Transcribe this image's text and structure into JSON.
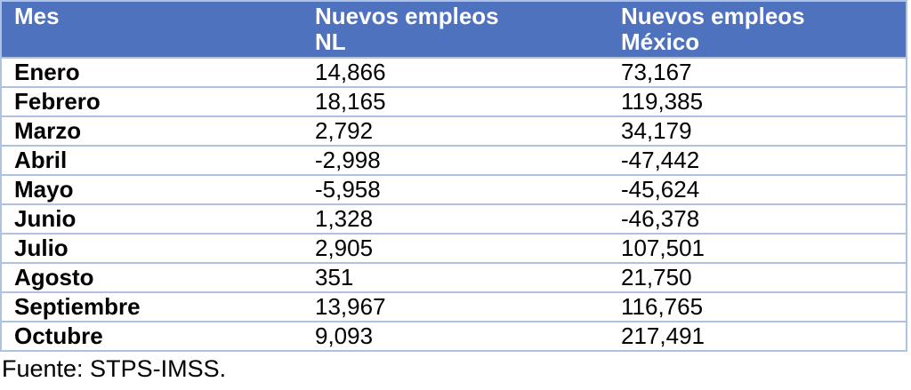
{
  "colors": {
    "header_bg": "#4E72BE",
    "header_text": "#FFFFFF",
    "border": "#AEC2E4",
    "body_text": "#000000"
  },
  "table": {
    "headers": [
      {
        "line1": "Mes",
        "line2": ""
      },
      {
        "line1": "Nuevos empleos",
        "line2": "NL"
      },
      {
        "line1": "Nuevos empleos",
        "line2": "México"
      }
    ],
    "rows": [
      {
        "mes": "Enero",
        "nl": "14,866",
        "mexico": "73,167"
      },
      {
        "mes": "Febrero",
        "nl": "18,165",
        "mexico": "119,385"
      },
      {
        "mes": "Marzo",
        "nl": "2,792",
        "mexico": "34,179"
      },
      {
        "mes": "Abril",
        "nl": "-2,998",
        "mexico": "-47,442"
      },
      {
        "mes": "Mayo",
        "nl": "-5,958",
        "mexico": "-45,624"
      },
      {
        "mes": "Junio",
        "nl": "1,328",
        "mexico": "-46,378"
      },
      {
        "mes": "Julio",
        "nl": "2,905",
        "mexico": "107,501"
      },
      {
        "mes": "Agosto",
        "nl": "351",
        "mexico": "21,750"
      },
      {
        "mes": "Septiembre",
        "nl": "13,967",
        "mexico": "116,765"
      },
      {
        "mes": "Octubre",
        "nl": "9,093",
        "mexico": "217,491"
      }
    ]
  },
  "source_note": "Fuente: STPS-IMSS.",
  "chart_data": {
    "type": "table",
    "title": "",
    "columns": [
      "Mes",
      "Nuevos empleos NL",
      "Nuevos empleos México"
    ],
    "rows": [
      [
        "Enero",
        14866,
        73167
      ],
      [
        "Febrero",
        18165,
        119385
      ],
      [
        "Marzo",
        2792,
        34179
      ],
      [
        "Abril",
        -2998,
        -47442
      ],
      [
        "Mayo",
        -5958,
        -45624
      ],
      [
        "Junio",
        1328,
        -46378
      ],
      [
        "Julio",
        2905,
        107501
      ],
      [
        "Agosto",
        351,
        21750
      ],
      [
        "Septiembre",
        13967,
        116765
      ],
      [
        "Octubre",
        9093,
        217491
      ]
    ],
    "source": "Fuente: STPS-IMSS."
  }
}
